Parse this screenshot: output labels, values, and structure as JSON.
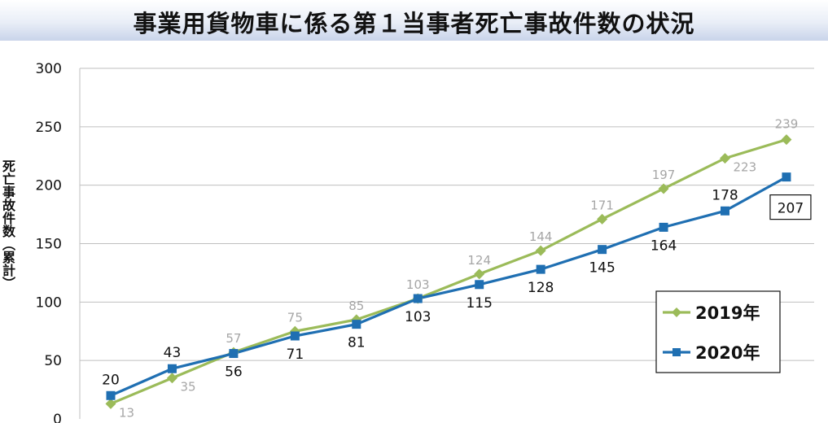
{
  "title": "事業用貨物車に係る第１当事者死亡事故件数の状況",
  "chart_data": {
    "type": "line",
    "title": "事業用貨物車に係る第１当事者死亡事故件数の状況",
    "ylabel": "死亡事故件数（累計）",
    "xlabel": "",
    "ylim": [
      0,
      300
    ],
    "yticks": [
      "0",
      "50",
      "100",
      "150",
      "200",
      "250",
      "300"
    ],
    "grid": true,
    "legend_position": "bottom-right",
    "series": [
      {
        "name": "2019年",
        "color": "#9bbb59",
        "marker": "diamond",
        "values": [
          13,
          35,
          57,
          75,
          85,
          103,
          124,
          144,
          171,
          197,
          223,
          239
        ]
      },
      {
        "name": "2020年",
        "color": "#1f6fb2",
        "marker": "square",
        "values": [
          20,
          43,
          56,
          71,
          81,
          103,
          115,
          128,
          145,
          164,
          178,
          207
        ]
      }
    ]
  }
}
